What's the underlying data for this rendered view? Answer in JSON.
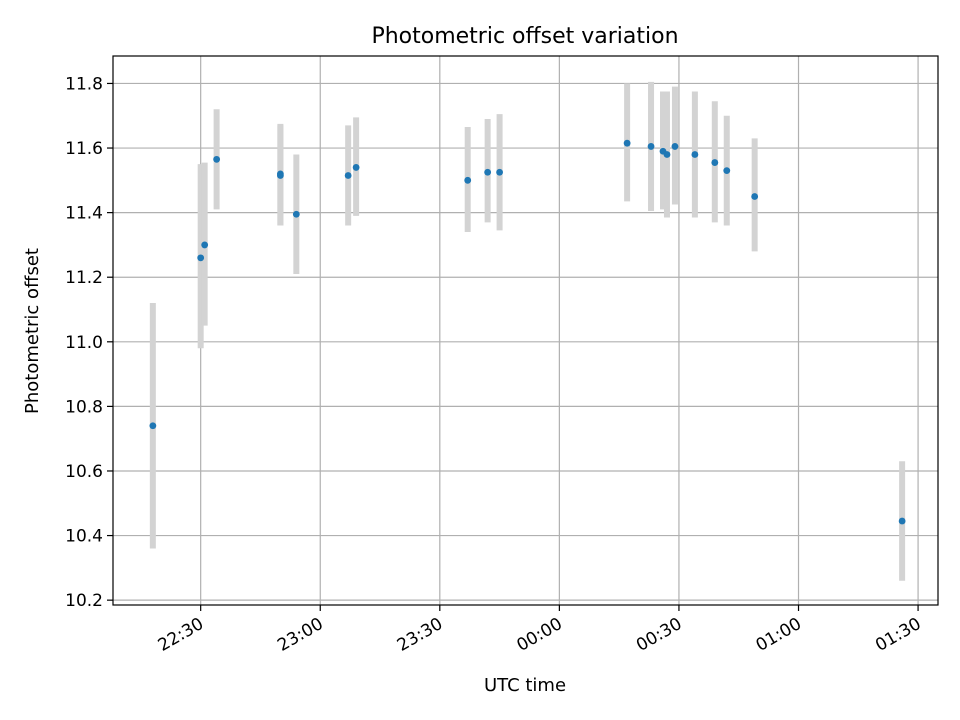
{
  "chart_data": {
    "type": "scatter",
    "title": "Photometric offset variation",
    "xlabel": "UTC time",
    "ylabel": "Photometric offset",
    "x_unit": "UTC",
    "xlim": [
      "22:08",
      "01:35"
    ],
    "ylim": [
      10.185,
      11.885
    ],
    "grid": true,
    "x_ticks": [
      "22:30",
      "23:00",
      "23:30",
      "00:00",
      "00:30",
      "01:00",
      "01:30"
    ],
    "y_ticks": [
      "10.2",
      "10.4",
      "10.6",
      "10.8",
      "11.0",
      "11.2",
      "11.4",
      "11.6",
      "11.8"
    ],
    "colors": {
      "marker": "#1f77b4",
      "errorbar": "#d3d3d3",
      "grid": "#b0b0b0"
    },
    "series": [
      {
        "points": [
          {
            "x": "22:18",
            "y": 10.74,
            "ylow": 10.36,
            "yhigh": 11.12
          },
          {
            "x": "22:30",
            "y": 11.26,
            "ylow": 10.98,
            "yhigh": 11.55
          },
          {
            "x": "22:31",
            "y": 11.3,
            "ylow": 11.05,
            "yhigh": 11.555
          },
          {
            "x": "22:34",
            "y": 11.565,
            "ylow": 11.41,
            "yhigh": 11.72
          },
          {
            "x": "22:50",
            "y": 11.52,
            "ylow": 11.36,
            "yhigh": 11.675
          },
          {
            "x": "22:50",
            "y": 11.515,
            "ylow": 11.36,
            "yhigh": 11.67
          },
          {
            "x": "22:54",
            "y": 11.395,
            "ylow": 11.21,
            "yhigh": 11.58
          },
          {
            "x": "23:07",
            "y": 11.515,
            "ylow": 11.36,
            "yhigh": 11.67
          },
          {
            "x": "23:09",
            "y": 11.54,
            "ylow": 11.39,
            "yhigh": 11.695
          },
          {
            "x": "23:37",
            "y": 11.5,
            "ylow": 11.34,
            "yhigh": 11.665
          },
          {
            "x": "23:42",
            "y": 11.525,
            "ylow": 11.37,
            "yhigh": 11.69
          },
          {
            "x": "23:45",
            "y": 11.525,
            "ylow": 11.345,
            "yhigh": 11.705
          },
          {
            "x": "00:17",
            "y": 11.615,
            "ylow": 11.435,
            "yhigh": 11.8
          },
          {
            "x": "00:23",
            "y": 11.605,
            "ylow": 11.405,
            "yhigh": 11.805
          },
          {
            "x": "00:26",
            "y": 11.59,
            "ylow": 11.41,
            "yhigh": 11.775
          },
          {
            "x": "00:27",
            "y": 11.58,
            "ylow": 11.385,
            "yhigh": 11.775
          },
          {
            "x": "00:29",
            "y": 11.605,
            "ylow": 11.425,
            "yhigh": 11.79
          },
          {
            "x": "00:34",
            "y": 11.58,
            "ylow": 11.385,
            "yhigh": 11.775
          },
          {
            "x": "00:39",
            "y": 11.555,
            "ylow": 11.37,
            "yhigh": 11.745
          },
          {
            "x": "00:42",
            "y": 11.53,
            "ylow": 11.36,
            "yhigh": 11.7
          },
          {
            "x": "00:49",
            "y": 11.45,
            "ylow": 11.28,
            "yhigh": 11.63
          },
          {
            "x": "01:26",
            "y": 10.445,
            "ylow": 10.26,
            "yhigh": 10.63
          }
        ]
      }
    ]
  }
}
